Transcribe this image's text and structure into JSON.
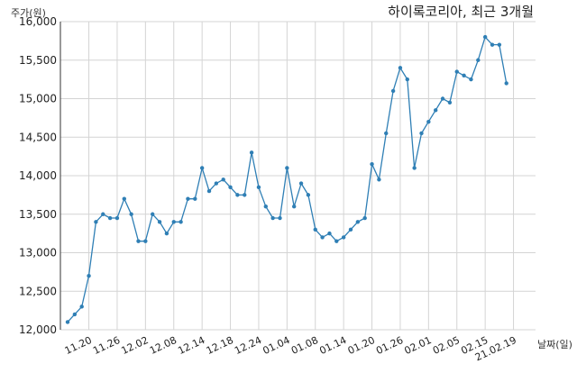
{
  "chart_data": {
    "type": "line",
    "title": "하이록코리아, 최근 3개월",
    "ylabel": "주가(원)",
    "xlabel": "날짜(일)",
    "ylim": [
      12000,
      16000
    ],
    "yticks": [
      12000,
      12500,
      13000,
      13500,
      14000,
      14500,
      15000,
      15500,
      16000
    ],
    "ytick_labels": [
      "12,000",
      "12,500",
      "13,000",
      "13,500",
      "14,000",
      "14,500",
      "15,000",
      "15,500",
      "16,000"
    ],
    "xticks": [
      {
        "index": 3,
        "label": "11.20"
      },
      {
        "index": 7,
        "label": "11.26"
      },
      {
        "index": 11,
        "label": "12.02"
      },
      {
        "index": 15,
        "label": "12.08"
      },
      {
        "index": 19,
        "label": "12.14"
      },
      {
        "index": 23,
        "label": "12.18"
      },
      {
        "index": 27,
        "label": "12.24"
      },
      {
        "index": 31,
        "label": "01.04"
      },
      {
        "index": 35,
        "label": "01.08"
      },
      {
        "index": 39,
        "label": "01.14"
      },
      {
        "index": 43,
        "label": "01.20"
      },
      {
        "index": 47,
        "label": "01.26"
      },
      {
        "index": 51,
        "label": "02.01"
      },
      {
        "index": 55,
        "label": "02.05"
      },
      {
        "index": 59,
        "label": "02.15"
      },
      {
        "index": 63,
        "label": "21.02.19"
      }
    ],
    "grid": true,
    "color": "#2f7fb5",
    "values": [
      12100,
      12200,
      12300,
      12700,
      13400,
      13500,
      13450,
      13450,
      13700,
      13500,
      13150,
      13150,
      13500,
      13400,
      13250,
      13400,
      13400,
      13700,
      13700,
      14100,
      13800,
      13900,
      13950,
      13850,
      13750,
      13750,
      14300,
      13850,
      13600,
      13450,
      13450,
      14100,
      13600,
      13900,
      13750,
      13300,
      13200,
      13250,
      13150,
      13200,
      13300,
      13400,
      13450,
      14150,
      13950,
      14550,
      15100,
      15400,
      15250,
      14100,
      14550,
      14700,
      14850,
      15000,
      14950,
      15350,
      15300,
      15250,
      15500,
      15800,
      15700,
      15700,
      15200
    ]
  }
}
